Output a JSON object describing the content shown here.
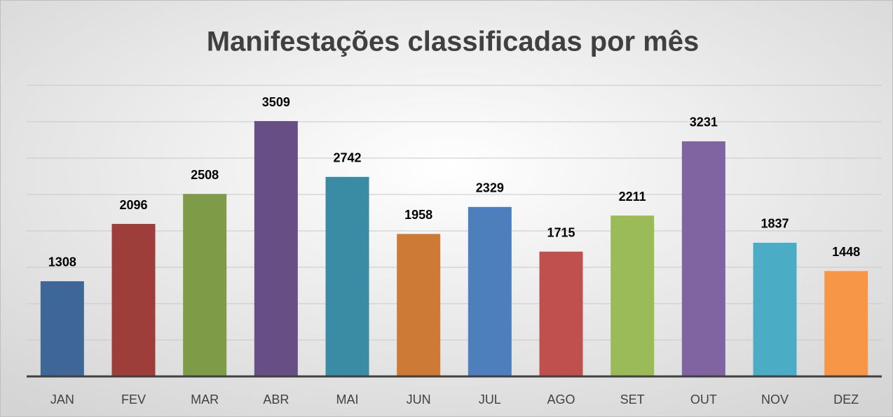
{
  "chart_data": {
    "type": "bar",
    "title": "Manifestações classificadas por mês",
    "categories": [
      "JAN",
      "FEV",
      "MAR",
      "ABR",
      "MAI",
      "JUN",
      "JUL",
      "AGO",
      "SET",
      "OUT",
      "NOV",
      "DEZ"
    ],
    "values": [
      1308,
      2096,
      2508,
      3509,
      2742,
      1958,
      2329,
      1715,
      2211,
      3231,
      1837,
      1448
    ],
    "colors": [
      "#3e6798",
      "#9e3e3b",
      "#7e9c47",
      "#674f86",
      "#398ca3",
      "#cd7a36",
      "#4d7fbd",
      "#c0504d",
      "#9bbb59",
      "#8064a2",
      "#4bacc6",
      "#f79646"
    ],
    "ylim": [
      0,
      4000
    ],
    "yticks": [
      0,
      500,
      1000,
      1500,
      2000,
      2500,
      3000,
      3500,
      4000
    ],
    "grid": true
  }
}
